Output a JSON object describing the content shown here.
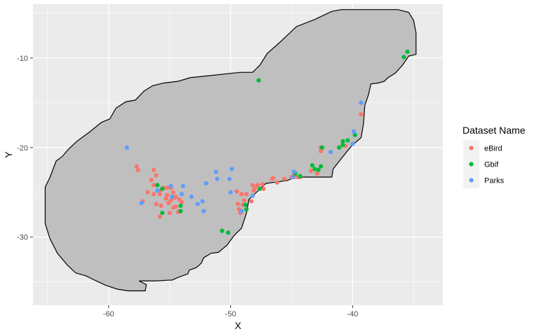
{
  "chart_data": {
    "type": "scatter",
    "xlabel": "X",
    "ylabel": "Y",
    "xlim": [
      -66.2,
      -32.6
    ],
    "ylim": [
      -37.6,
      -4.0
    ],
    "x_ticks": [
      -60,
      -50,
      -40
    ],
    "x_tick_labels": [
      "-60",
      "-50",
      "-40"
    ],
    "y_ticks": [
      -30,
      -20,
      -10
    ],
    "y_tick_labels": [
      "-30",
      "-20",
      "-10"
    ],
    "grid": true,
    "legend": {
      "title": "Dataset Name",
      "placement": "right",
      "entries": [
        "eBird",
        "Gbif",
        "Parks"
      ]
    },
    "colors": {
      "panel": "#ebebeb",
      "grid": "#ffffff",
      "polygon_fill": "#bfbfbf",
      "polygon_stroke": "#000000",
      "eBird": "#F8766D",
      "Gbif": "#00BA38",
      "Parks": "#619CFF"
    },
    "boundary_polygon": [
      [
        -65.2,
        -28.5
      ],
      [
        -65.2,
        -24.4
      ],
      [
        -64.8,
        -23.3
      ],
      [
        -64.3,
        -21.5
      ],
      [
        -63.8,
        -21.0
      ],
      [
        -63.3,
        -20.2
      ],
      [
        -62.6,
        -19.3
      ],
      [
        -61.6,
        -18.3
      ],
      [
        -60.6,
        -17.2
      ],
      [
        -59.9,
        -16.8
      ],
      [
        -59.4,
        -15.6
      ],
      [
        -58.6,
        -14.9
      ],
      [
        -57.8,
        -14.7
      ],
      [
        -57.1,
        -13.7
      ],
      [
        -56.4,
        -13.1
      ],
      [
        -55.5,
        -12.8
      ],
      [
        -54.3,
        -12.6
      ],
      [
        -53.3,
        -12.2
      ],
      [
        -51.9,
        -12.0
      ],
      [
        -49.2,
        -11.6
      ],
      [
        -48.2,
        -11.6
      ],
      [
        -47.6,
        -10.8
      ],
      [
        -47.0,
        -9.5
      ],
      [
        -46.0,
        -8.3
      ],
      [
        -44.6,
        -6.5
      ],
      [
        -43.1,
        -5.7
      ],
      [
        -41.7,
        -4.8
      ],
      [
        -40.9,
        -4.6
      ],
      [
        -39.7,
        -4.6
      ],
      [
        -36.3,
        -4.6
      ],
      [
        -35.4,
        -4.9
      ],
      [
        -35.0,
        -5.8
      ],
      [
        -34.8,
        -7.2
      ],
      [
        -34.8,
        -9.6
      ],
      [
        -35.4,
        -9.8
      ],
      [
        -35.9,
        -10.8
      ],
      [
        -36.5,
        -11.7
      ],
      [
        -37.1,
        -12.2
      ],
      [
        -37.4,
        -12.6
      ],
      [
        -37.9,
        -12.8
      ],
      [
        -38.5,
        -12.9
      ],
      [
        -38.7,
        -14.1
      ],
      [
        -39.0,
        -15.3
      ],
      [
        -39.1,
        -17.3
      ],
      [
        -39.3,
        -18.9
      ],
      [
        -40.0,
        -19.7
      ],
      [
        -40.5,
        -20.5
      ],
      [
        -41.6,
        -22.4
      ],
      [
        -41.7,
        -23.3
      ],
      [
        -43.0,
        -23.3
      ],
      [
        -44.6,
        -23.3
      ],
      [
        -45.4,
        -23.7
      ],
      [
        -47.1,
        -24.0
      ],
      [
        -47.8,
        -24.9
      ],
      [
        -48.5,
        -25.8
      ],
      [
        -48.7,
        -27.3
      ],
      [
        -49.1,
        -29.0
      ],
      [
        -49.7,
        -29.8
      ],
      [
        -50.3,
        -30.9
      ],
      [
        -51.0,
        -31.7
      ],
      [
        -51.6,
        -31.8
      ],
      [
        -52.2,
        -32.3
      ],
      [
        -52.4,
        -32.9
      ],
      [
        -52.8,
        -33.4
      ],
      [
        -53.4,
        -33.7
      ],
      [
        -53.5,
        -34.1
      ],
      [
        -54.3,
        -34.5
      ],
      [
        -54.8,
        -34.8
      ],
      [
        -55.1,
        -34.8
      ],
      [
        -56.1,
        -34.9
      ],
      [
        -57.1,
        -34.9
      ],
      [
        -57.5,
        -34.9
      ],
      [
        -56.9,
        -35.3
      ],
      [
        -57.0,
        -36.0
      ],
      [
        -58.4,
        -36.0
      ],
      [
        -59.3,
        -35.8
      ],
      [
        -60.2,
        -35.4
      ],
      [
        -61.0,
        -34.9
      ],
      [
        -61.9,
        -34.3
      ],
      [
        -62.7,
        -34.0
      ],
      [
        -63.4,
        -33.1
      ],
      [
        -64.2,
        -31.8
      ],
      [
        -64.8,
        -30.2
      ],
      [
        -65.2,
        -28.5
      ]
    ],
    "series": [
      {
        "name": "eBird",
        "points": [
          [
            -57.7,
            -22.1
          ],
          [
            -57.6,
            -22.5
          ],
          [
            -56.3,
            -22.5
          ],
          [
            -56.1,
            -23.1
          ],
          [
            -56.5,
            -23.6
          ],
          [
            -56.3,
            -24.2
          ],
          [
            -55.8,
            -24.8
          ],
          [
            -55.5,
            -24.5
          ],
          [
            -55.2,
            -24.5
          ],
          [
            -56.8,
            -25.0
          ],
          [
            -56.3,
            -25.2
          ],
          [
            -55.8,
            -25.2
          ],
          [
            -55.2,
            -25.3
          ],
          [
            -54.9,
            -24.5
          ],
          [
            -54.7,
            -25.0
          ],
          [
            -54.5,
            -25.5
          ],
          [
            -55.3,
            -25.7
          ],
          [
            -54.9,
            -25.9
          ],
          [
            -54.6,
            -25.6
          ],
          [
            -54.2,
            -25.8
          ],
          [
            -54.0,
            -26.1
          ],
          [
            -57.2,
            -26.0
          ],
          [
            -56.1,
            -26.3
          ],
          [
            -55.7,
            -26.5
          ],
          [
            -55.1,
            -26.2
          ],
          [
            -54.7,
            -26.7
          ],
          [
            -54.5,
            -26.6
          ],
          [
            -54.3,
            -27.2
          ],
          [
            -55.0,
            -27.3
          ],
          [
            -55.8,
            -27.7
          ],
          [
            -49.5,
            -24.9
          ],
          [
            -49.1,
            -25.2
          ],
          [
            -48.7,
            -25.2
          ],
          [
            -48.1,
            -24.8
          ],
          [
            -48.0,
            -24.5
          ],
          [
            -48.2,
            -24.2
          ],
          [
            -47.8,
            -24.2
          ],
          [
            -47.4,
            -24.1
          ],
          [
            -47.3,
            -24.6
          ],
          [
            -46.6,
            -23.5
          ],
          [
            -46.2,
            -23.9
          ],
          [
            -45.6,
            -23.5
          ],
          [
            -45.0,
            -23.3
          ],
          [
            -44.8,
            -23.3
          ],
          [
            -44.5,
            -23.3
          ],
          [
            -44.3,
            -23.3
          ],
          [
            -42.6,
            -20.0
          ],
          [
            -42.6,
            -20.4
          ],
          [
            -40.6,
            -19.8
          ],
          [
            -39.3,
            -16.3
          ],
          [
            -49.4,
            -26.3
          ],
          [
            -49.0,
            -26.4
          ],
          [
            -49.3,
            -26.9
          ],
          [
            -49.2,
            -27.3
          ],
          [
            -48.9,
            -25.9
          ],
          [
            -48.3,
            -26.0
          ],
          [
            -46.5,
            -23.4
          ],
          [
            -44.8,
            -22.9
          ],
          [
            -43.4,
            -22.6
          ],
          [
            -42.9,
            -22.9
          ]
        ]
      },
      {
        "name": "Gbif",
        "points": [
          [
            -35.5,
            -9.3
          ],
          [
            -35.8,
            -9.9
          ],
          [
            -47.7,
            -12.5
          ],
          [
            -39.8,
            -18.6
          ],
          [
            -40.4,
            -19.2
          ],
          [
            -40.8,
            -19.3
          ],
          [
            -40.8,
            -19.7
          ],
          [
            -41.1,
            -20.0
          ],
          [
            -42.5,
            -20.0
          ],
          [
            -43.3,
            -22.0
          ],
          [
            -42.6,
            -22.1
          ],
          [
            -42.8,
            -22.5
          ],
          [
            -43.1,
            -22.4
          ],
          [
            -44.7,
            -22.9
          ],
          [
            -44.3,
            -23.2
          ],
          [
            -50.7,
            -29.3
          ],
          [
            -50.2,
            -29.5
          ],
          [
            -48.8,
            -26.4
          ],
          [
            -48.7,
            -26.9
          ],
          [
            -47.6,
            -24.6
          ],
          [
            -56.0,
            -24.2
          ],
          [
            -55.6,
            -24.6
          ],
          [
            -55.6,
            -27.3
          ],
          [
            -54.1,
            -26.5
          ],
          [
            -54.1,
            -27.1
          ]
        ]
      },
      {
        "name": "Parks",
        "points": [
          [
            -58.5,
            -20.0
          ],
          [
            -39.3,
            -15.0
          ],
          [
            -39.9,
            -18.2
          ],
          [
            -40.0,
            -19.6
          ],
          [
            -41.8,
            -20.5
          ],
          [
            -44.8,
            -22.7
          ],
          [
            -50.1,
            -23.5
          ],
          [
            -49.9,
            -22.4
          ],
          [
            -51.2,
            -22.7
          ],
          [
            -51.1,
            -23.5
          ],
          [
            -52.0,
            -24.0
          ],
          [
            -53.9,
            -24.3
          ],
          [
            -54.8,
            -25.5
          ],
          [
            -53.2,
            -25.5
          ],
          [
            -52.7,
            -26.3
          ],
          [
            -52.3,
            -26.0
          ],
          [
            -52.2,
            -27.1
          ],
          [
            -54.0,
            -25.2
          ],
          [
            -54.9,
            -24.3
          ],
          [
            -56.0,
            -24.8
          ],
          [
            -57.3,
            -26.2
          ],
          [
            -50.0,
            -25.0
          ],
          [
            -48.2,
            -25.4
          ],
          [
            -44.9,
            -23.3
          ],
          [
            -49.1,
            -27.1
          ]
        ]
      }
    ]
  }
}
